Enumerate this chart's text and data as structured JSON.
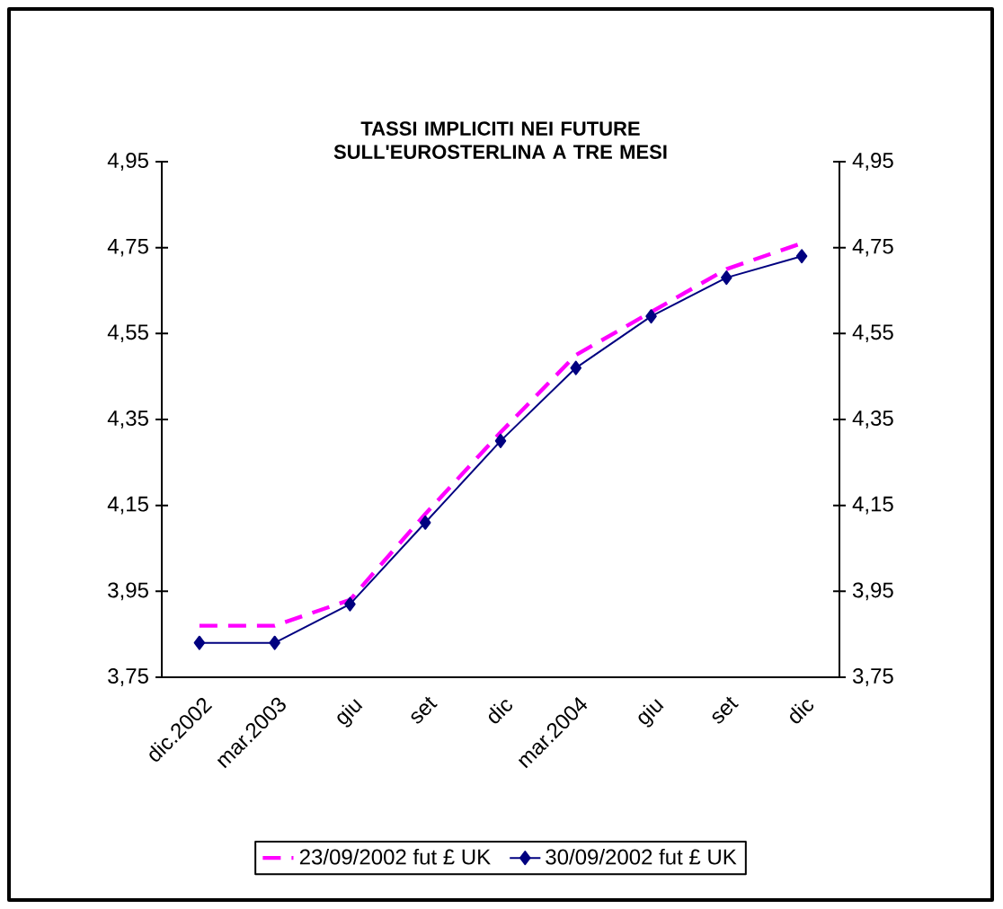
{
  "chart_data": {
    "type": "line",
    "title": "TASSI IMPLICITI NEI FUTURE SULL'EUROSTERLINA A TRE MESI",
    "categories": [
      "dic.2002",
      "mar.2003",
      "giu",
      "set",
      "dic",
      "mar.2004",
      "giu",
      "set",
      "dic"
    ],
    "series": [
      {
        "name": "23/09/2002 fut £ UK",
        "color": "#ff00ff",
        "line_style": "dashed",
        "marker": "none",
        "values": [
          3.87,
          3.87,
          3.93,
          4.13,
          4.32,
          4.5,
          4.6,
          4.7,
          4.76
        ]
      },
      {
        "name": "30/09/2002 fut £ UK",
        "color": "#000080",
        "line_style": "solid",
        "marker": "diamond",
        "values": [
          3.83,
          3.83,
          3.92,
          4.11,
          4.3,
          4.47,
          4.59,
          4.68,
          4.73
        ]
      }
    ],
    "ylim": [
      3.75,
      4.95
    ],
    "yticks": [
      {
        "value": 3.75,
        "label": "3,75"
      },
      {
        "value": 3.95,
        "label": "3,95"
      },
      {
        "value": 4.15,
        "label": "4,15"
      },
      {
        "value": 4.35,
        "label": "4,35"
      },
      {
        "value": 4.55,
        "label": "4,55"
      },
      {
        "value": 4.75,
        "label": "4,75"
      },
      {
        "value": 4.95,
        "label": "4,95"
      }
    ],
    "y2lim": [
      3.75,
      4.95
    ],
    "y2ticks": [
      {
        "value": 3.75,
        "label": "3,75"
      },
      {
        "value": 3.95,
        "label": "3,95"
      },
      {
        "value": 4.15,
        "label": "4,15"
      },
      {
        "value": 4.35,
        "label": "4,35"
      },
      {
        "value": 4.55,
        "label": "4,55"
      },
      {
        "value": 4.75,
        "label": "4,75"
      },
      {
        "value": 4.95,
        "label": "4,95"
      }
    ],
    "grid": false,
    "legend": "bottom"
  }
}
